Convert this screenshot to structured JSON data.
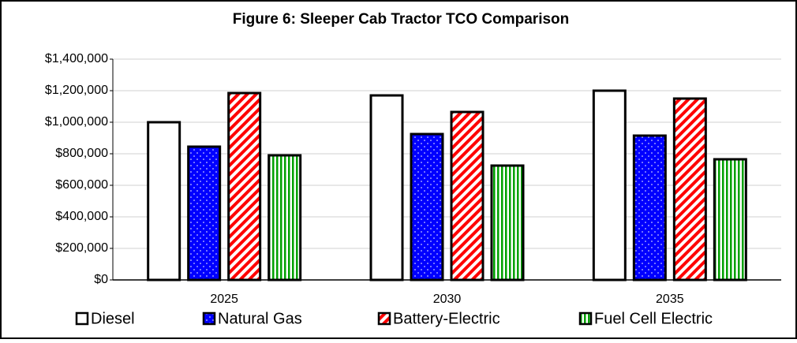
{
  "chart_data": {
    "type": "bar",
    "title": "Figure 6: Sleeper Cab Tractor TCO Comparison",
    "categories": [
      "2025",
      "2030",
      "2035"
    ],
    "series": [
      {
        "name": "Diesel",
        "color": "#ffffff",
        "pattern": "none",
        "values": [
          1000000,
          1170000,
          1200000
        ]
      },
      {
        "name": "Natural Gas",
        "color": "#0000ff",
        "pattern": "dots",
        "values": [
          845000,
          925000,
          915000
        ]
      },
      {
        "name": "Battery-Electric",
        "color": "#ff0000",
        "pattern": "diagonal",
        "values": [
          1185000,
          1065000,
          1150000
        ]
      },
      {
        "name": "Fuel Cell Electric",
        "color": "#00a000",
        "pattern": "vertical",
        "values": [
          790000,
          725000,
          765000
        ]
      }
    ],
    "ylim": [
      0,
      1400000
    ],
    "yticks": [
      {
        "value": 0,
        "label": "$0"
      },
      {
        "value": 200000,
        "label": "$200,000"
      },
      {
        "value": 400000,
        "label": "$400,000"
      },
      {
        "value": 600000,
        "label": "$600,000"
      },
      {
        "value": 800000,
        "label": "$800,000"
      },
      {
        "value": 1000000,
        "label": "$1,000,000"
      },
      {
        "value": 1200000,
        "label": "$1,200,000"
      },
      {
        "value": 1400000,
        "label": "$1,400,000"
      }
    ],
    "grid": true,
    "legend": "bottom"
  }
}
